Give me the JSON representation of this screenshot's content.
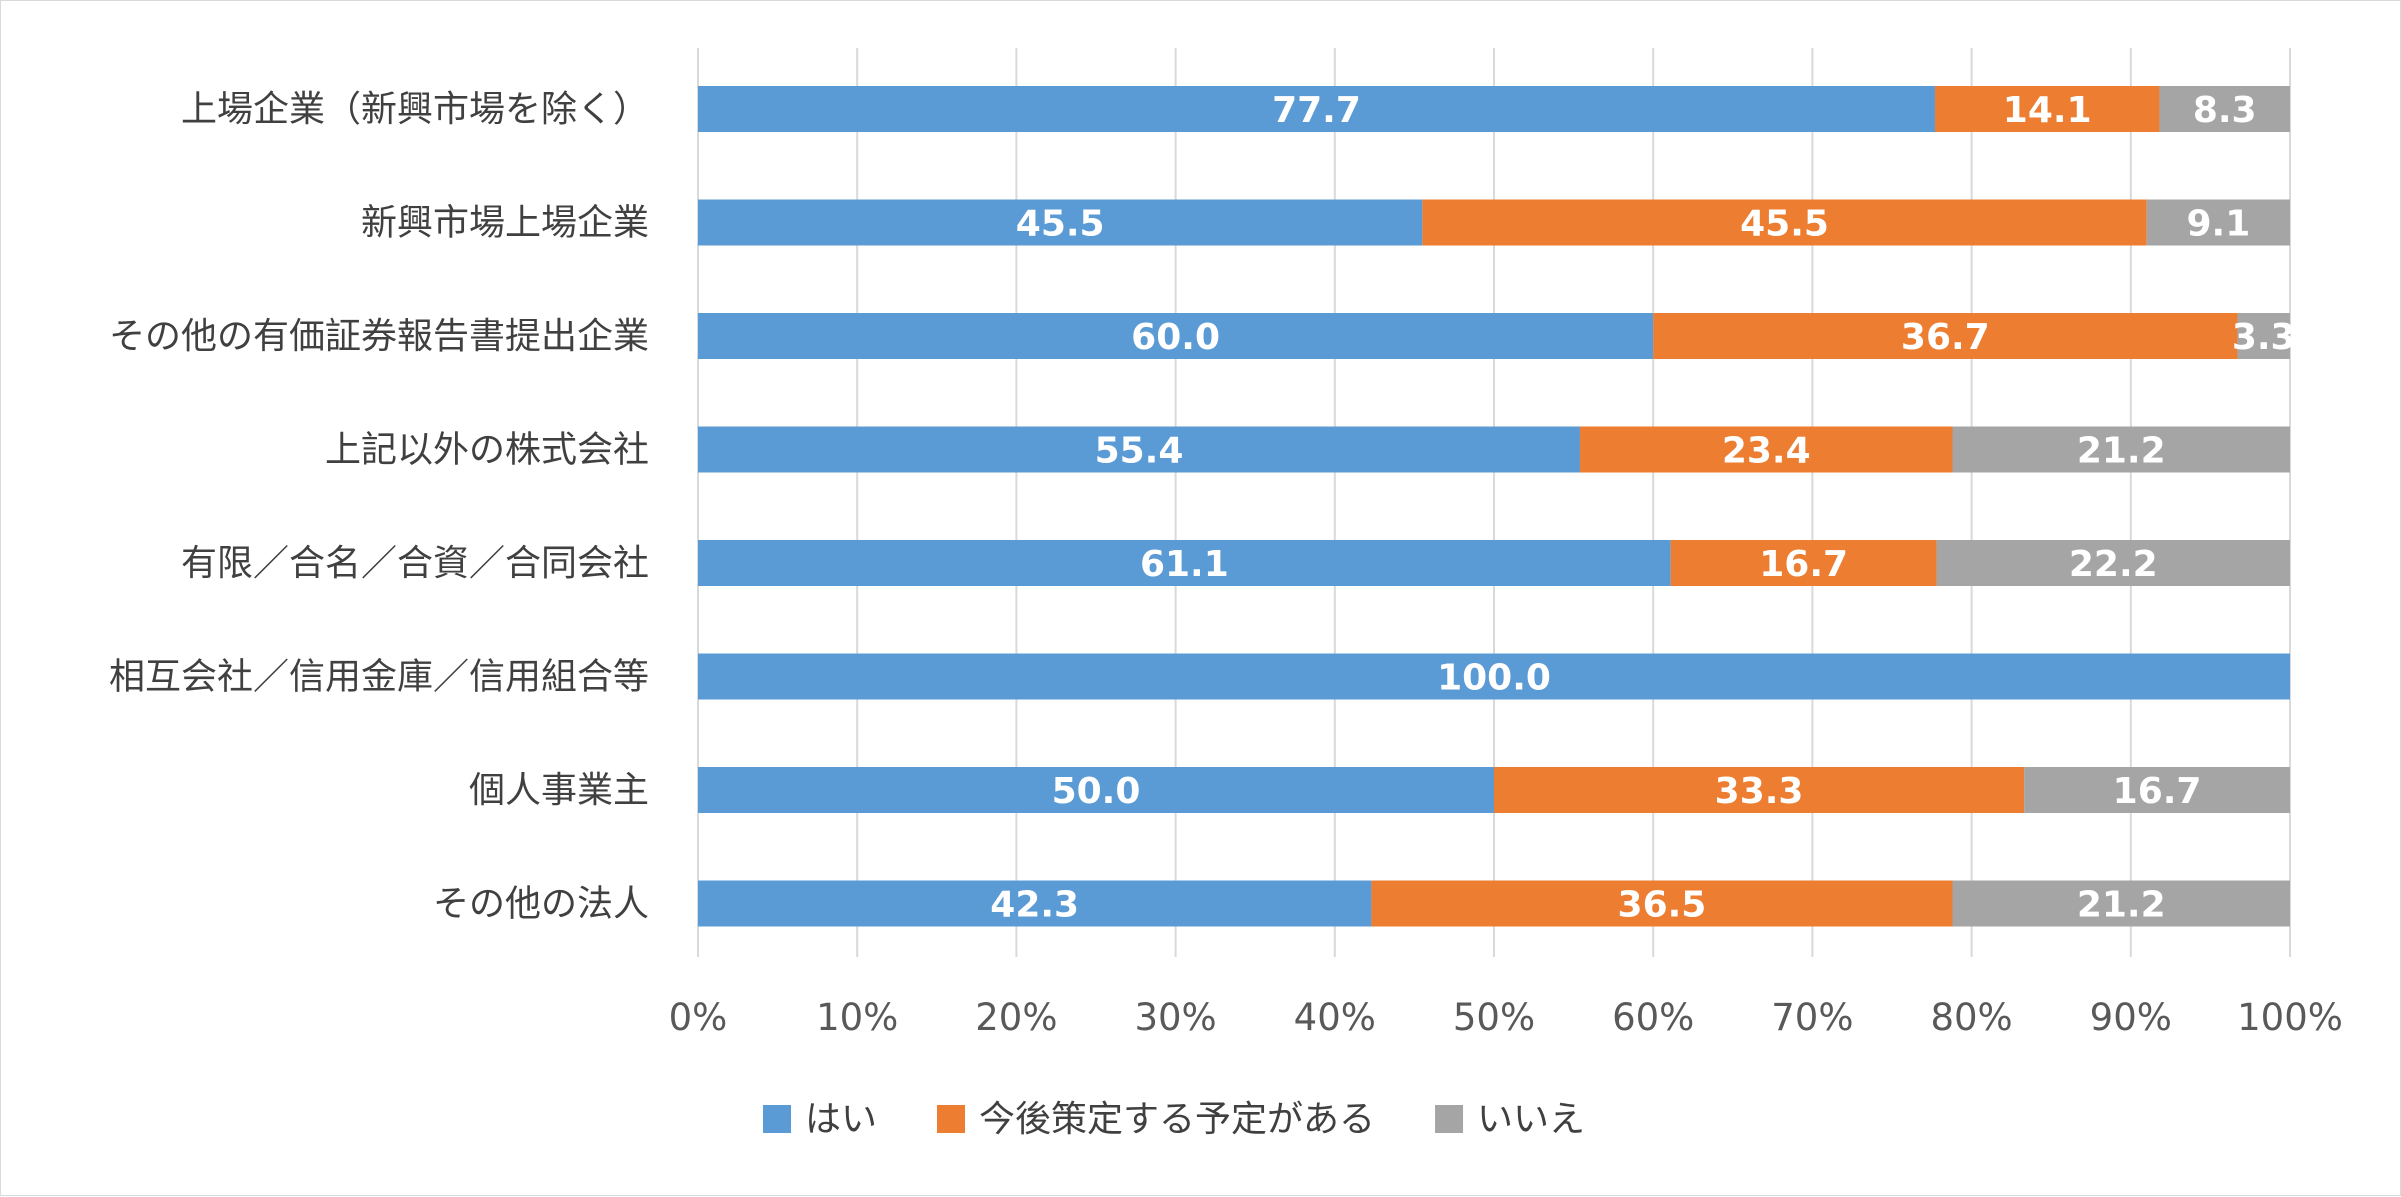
{
  "chart_data": {
    "type": "bar",
    "orientation": "horizontal",
    "stacked": "percent",
    "categories": [
      "上場企業（新興市場を除く）",
      "新興市場上場企業",
      "その他の有価証券報告書提出企業",
      "上記以外の株式会社",
      "有限／合名／合資／合同会社",
      "相互会社／信用金庫／信用組合等",
      "個人事業主",
      "その他の法人"
    ],
    "series": [
      {
        "name": "はい",
        "color": "#5b9bd5",
        "values": [
          77.7,
          45.5,
          60.0,
          55.4,
          61.1,
          100.0,
          50.0,
          42.3
        ],
        "labels": [
          "77.7",
          "45.5",
          "60.0",
          "55.4",
          "61.1",
          "100.0",
          "50.0",
          "42.3"
        ]
      },
      {
        "name": "今後策定する予定がある",
        "color": "#ed7d31",
        "values": [
          14.1,
          45.5,
          36.7,
          23.4,
          16.7,
          0,
          33.3,
          36.5
        ],
        "labels": [
          "14.1",
          "45.5",
          "36.7",
          "23.4",
          "16.7",
          "",
          "33.3",
          "36.5"
        ]
      },
      {
        "name": "いいえ",
        "color": "#a5a5a5",
        "values": [
          8.3,
          9.1,
          3.3,
          21.2,
          22.2,
          0,
          16.7,
          21.2
        ],
        "labels": [
          "8.3",
          "9.1",
          "3.3",
          "21.2",
          "22.2",
          "",
          "16.7",
          "21.2"
        ]
      }
    ],
    "xlim": [
      0,
      100
    ],
    "xticks": [
      "0%",
      "10%",
      "20%",
      "30%",
      "40%",
      "50%",
      "60%",
      "70%",
      "80%",
      "90%",
      "100%"
    ],
    "grid": true,
    "legend_position": "bottom",
    "title": "",
    "xlabel": "",
    "ylabel": ""
  }
}
